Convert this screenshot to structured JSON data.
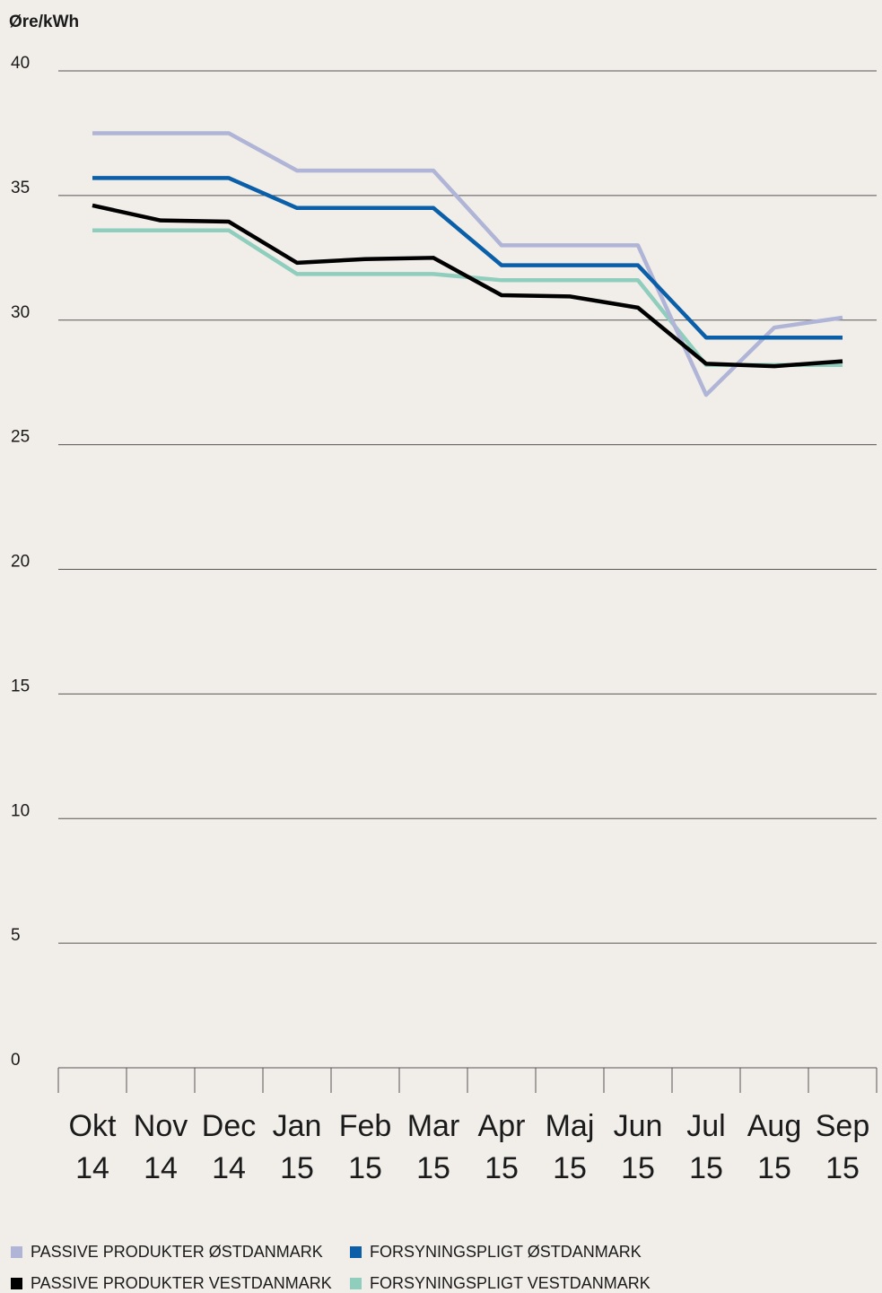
{
  "chart_data": {
    "type": "line",
    "y_label": "Øre/kWh",
    "categories": [
      [
        "Okt",
        "14"
      ],
      [
        "Nov",
        "14"
      ],
      [
        "Dec",
        "14"
      ],
      [
        "Jan",
        "15"
      ],
      [
        "Feb",
        "15"
      ],
      [
        "Mar",
        "15"
      ],
      [
        "Apr",
        "15"
      ],
      [
        "Maj",
        "15"
      ],
      [
        "Jun",
        "15"
      ],
      [
        "Jul",
        "15"
      ],
      [
        "Aug",
        "15"
      ],
      [
        "Sep",
        "15"
      ]
    ],
    "ylim": [
      0,
      40
    ],
    "yticks": [
      0,
      5,
      10,
      15,
      20,
      25,
      30,
      35,
      40
    ],
    "grid": true,
    "series": [
      {
        "name": "PASSIVE PRODUKTER ØSTDANMARK",
        "color": "#b0b4d6",
        "values": [
          37.5,
          37.5,
          37.5,
          36.0,
          36.0,
          36.0,
          33.0,
          33.0,
          33.0,
          27.0,
          29.7,
          30.1
        ]
      },
      {
        "name": "FORSYNINGSPLIGT ØSTDANMARK",
        "color": "#0a5fa8",
        "values": [
          35.7,
          35.7,
          35.7,
          34.5,
          34.5,
          34.5,
          32.2,
          32.2,
          32.2,
          29.3,
          29.3,
          29.3
        ]
      },
      {
        "name": "PASSIVE PRODUKTER VESTDANMARK",
        "color": "#000000",
        "values": [
          34.6,
          34.0,
          33.95,
          32.3,
          32.45,
          32.5,
          31.0,
          30.95,
          30.5,
          28.25,
          28.15,
          28.35
        ]
      },
      {
        "name": "FORSYNINGSPLIGT VESTDANMARK",
        "color": "#8fcdbd",
        "values": [
          33.6,
          33.6,
          33.6,
          31.85,
          31.85,
          31.85,
          31.6,
          31.6,
          31.6,
          28.2,
          28.2,
          28.2
        ]
      }
    ]
  }
}
